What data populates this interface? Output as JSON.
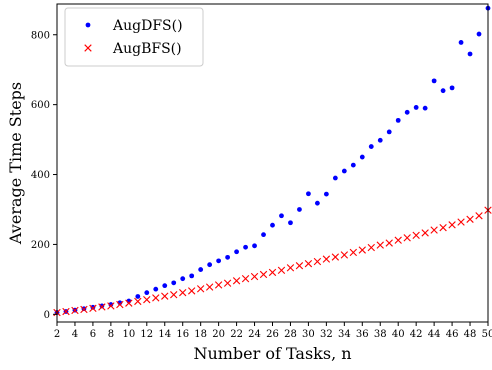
{
  "chart_data": {
    "type": "scatter",
    "xlabel": "Number of Tasks, n",
    "ylabel": "Average Time Steps",
    "xlim": [
      2,
      50
    ],
    "ylim": [
      -22,
      888
    ],
    "xticks": [
      2,
      4,
      6,
      8,
      10,
      12,
      14,
      16,
      18,
      20,
      22,
      24,
      26,
      28,
      30,
      32,
      34,
      36,
      38,
      40,
      42,
      44,
      46,
      48,
      50
    ],
    "yticks": [
      0,
      200,
      400,
      600,
      800
    ],
    "legend_position": "top-left",
    "x": [
      2,
      3,
      4,
      5,
      6,
      7,
      8,
      9,
      10,
      11,
      12,
      13,
      14,
      15,
      16,
      17,
      18,
      19,
      20,
      21,
      22,
      23,
      24,
      25,
      26,
      27,
      28,
      29,
      30,
      31,
      32,
      33,
      34,
      35,
      36,
      37,
      38,
      39,
      40,
      41,
      42,
      43,
      44,
      45,
      46,
      47,
      48,
      49,
      50
    ],
    "series": [
      {
        "name": "AugDFS()",
        "color": "#0000ff",
        "marker": "dot",
        "values": [
          5,
          8,
          12,
          16,
          20,
          24,
          28,
          33,
          38,
          51,
          62,
          72,
          82,
          90,
          102,
          110,
          128,
          142,
          153,
          163,
          179,
          192,
          196,
          228,
          255,
          282,
          262,
          300,
          345,
          318,
          344,
          390,
          410,
          427,
          450,
          480,
          498,
          522,
          555,
          578,
          592,
          590,
          668,
          640,
          648,
          778,
          745,
          802,
          876
        ]
      },
      {
        "name": "AugBFS()",
        "color": "#ff0000",
        "marker": "x",
        "values": [
          5,
          8,
          11,
          14,
          17,
          21,
          24,
          28,
          32,
          37,
          42,
          47,
          52,
          56,
          62,
          67,
          73,
          78,
          84,
          89,
          96,
          102,
          108,
          114,
          120,
          126,
          133,
          139,
          145,
          151,
          158,
          164,
          170,
          177,
          184,
          191,
          198,
          204,
          212,
          219,
          226,
          233,
          241,
          248,
          256,
          264,
          272,
          282,
          298
        ]
      }
    ]
  }
}
